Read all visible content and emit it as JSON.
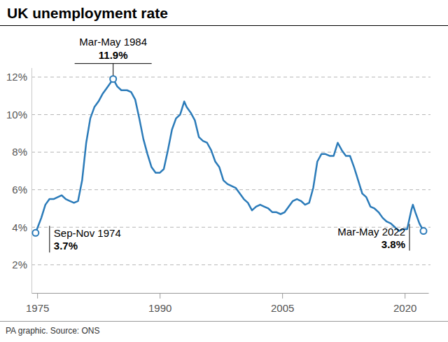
{
  "chart_data": {
    "type": "line",
    "title": "UK unemployment rate",
    "source": "PA graphic. Source: ONS",
    "color": "#2b7bb9",
    "grid": true,
    "x": [
      1974.8,
      1975.5,
      1976.0,
      1976.5,
      1977.0,
      1977.5,
      1978.0,
      1978.5,
      1979.0,
      1979.5,
      1980.0,
      1980.5,
      1981.0,
      1981.5,
      1982.0,
      1982.5,
      1983.0,
      1983.5,
      1984.3,
      1984.8,
      1985.3,
      1986.0,
      1986.5,
      1987.0,
      1987.5,
      1988.0,
      1988.5,
      1989.0,
      1989.5,
      1990.0,
      1990.5,
      1991.0,
      1991.5,
      1992.0,
      1992.5,
      1993.0,
      1993.3,
      1993.8,
      1994.3,
      1994.8,
      1995.3,
      1995.8,
      1996.3,
      1996.8,
      1997.3,
      1997.8,
      1998.3,
      1998.8,
      1999.3,
      1999.8,
      2000.3,
      2000.8,
      2001.3,
      2001.8,
      2002.3,
      2002.8,
      2003.3,
      2003.8,
      2004.3,
      2004.8,
      2005.3,
      2005.8,
      2006.3,
      2006.8,
      2007.3,
      2007.8,
      2008.3,
      2008.8,
      2009.3,
      2009.8,
      2010.3,
      2010.8,
      2011.3,
      2011.8,
      2012.3,
      2012.8,
      2013.3,
      2013.8,
      2014.3,
      2014.8,
      2015.3,
      2015.8,
      2016.3,
      2016.8,
      2017.3,
      2017.8,
      2018.3,
      2018.8,
      2019.3,
      2019.8,
      2020.3,
      2020.8,
      2021.0,
      2021.3,
      2021.8,
      2022.3
    ],
    "values": [
      3.7,
      4.5,
      5.2,
      5.5,
      5.5,
      5.6,
      5.7,
      5.5,
      5.4,
      5.3,
      5.4,
      6.5,
      8.5,
      9.8,
      10.4,
      10.7,
      11.1,
      11.4,
      11.9,
      11.5,
      11.3,
      11.3,
      11.2,
      10.8,
      9.8,
      8.7,
      7.9,
      7.2,
      6.9,
      6.9,
      7.1,
      8.1,
      9.2,
      9.8,
      10.0,
      10.7,
      10.4,
      10.1,
      9.7,
      8.8,
      8.6,
      8.5,
      8.1,
      7.5,
      7.2,
      6.5,
      6.3,
      6.2,
      6.1,
      5.8,
      5.5,
      5.3,
      4.9,
      5.1,
      5.2,
      5.1,
      5.0,
      4.8,
      4.8,
      4.7,
      4.8,
      5.1,
      5.4,
      5.5,
      5.4,
      5.2,
      5.3,
      6.1,
      7.5,
      7.9,
      7.9,
      7.8,
      7.8,
      8.5,
      8.1,
      7.8,
      7.8,
      7.2,
      6.5,
      5.8,
      5.6,
      5.1,
      5.0,
      4.8,
      4.5,
      4.3,
      4.2,
      4.0,
      3.8,
      3.9,
      3.9,
      4.9,
      5.2,
      4.8,
      4.2,
      3.8
    ],
    "xlim": [
      1974.3,
      2022.9
    ],
    "xticks": [
      1975,
      1990,
      2005,
      2020
    ],
    "ylim": [
      0.5,
      12.5
    ],
    "yticks": [
      {
        "value": 2,
        "label": "2%"
      },
      {
        "value": 4,
        "label": "4%"
      },
      {
        "value": 6,
        "label": "6%"
      },
      {
        "value": 8,
        "label": "8%"
      },
      {
        "value": 10,
        "label": "10%"
      },
      {
        "value": 12,
        "label": "12%"
      }
    ],
    "annotations": [
      {
        "label": "Sep-Nov 1974",
        "value_label": "3.7%",
        "x": 1974.8,
        "y": 3.7
      },
      {
        "label": "Mar-May 1984",
        "value_label": "11.9%",
        "x": 1984.3,
        "y": 11.9
      },
      {
        "label": "Mar-May 2022",
        "value_label": "3.8%",
        "x": 2022.3,
        "y": 3.8
      }
    ]
  }
}
